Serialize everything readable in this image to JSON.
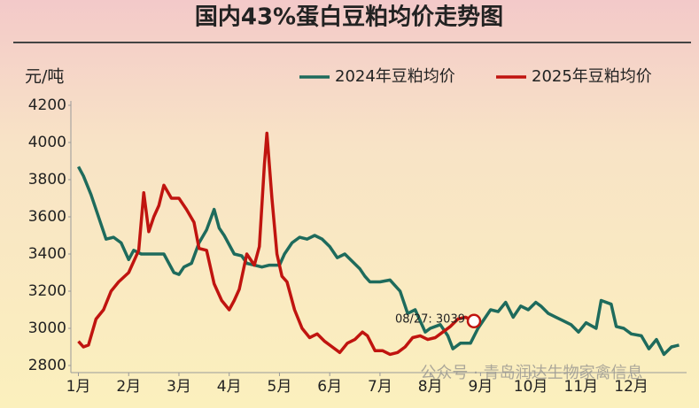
{
  "chart_data": {
    "type": "line",
    "title": "国内43%蛋白豆粕均价走势图",
    "y_label": "元/吨",
    "annotation": "08/27: 3039",
    "watermark": "公众号 · 青岛润达生物家禽信息",
    "legend": "top-right",
    "xlim": [
      0.85,
      13.1
    ],
    "xticks": [
      {
        "value": 1,
        "label": "1月"
      },
      {
        "value": 2,
        "label": "2月"
      },
      {
        "value": 3,
        "label": "3月"
      },
      {
        "value": 4,
        "label": "4月"
      },
      {
        "value": 5,
        "label": "5月"
      },
      {
        "value": 6,
        "label": "6月"
      },
      {
        "value": 7,
        "label": "7月"
      },
      {
        "value": 8,
        "label": "8月"
      },
      {
        "value": 9,
        "label": "9月"
      },
      {
        "value": 10,
        "label": "10月"
      },
      {
        "value": 11,
        "label": "11月"
      },
      {
        "value": 12,
        "label": "12月"
      }
    ],
    "ylim": [
      2800,
      4200
    ],
    "yticks": [
      2800,
      3000,
      3200,
      3400,
      3600,
      3800,
      4000,
      4200
    ],
    "series": [
      {
        "name": "2024年豆粕均价",
        "color": "#1e6b5c",
        "x": [
          1.0,
          1.1,
          1.25,
          1.4,
          1.55,
          1.7,
          1.85,
          2.0,
          2.1,
          2.25,
          2.5,
          2.7,
          2.8,
          2.9,
          3.0,
          3.1,
          3.25,
          3.4,
          3.55,
          3.7,
          3.8,
          3.9,
          4.0,
          4.1,
          4.25,
          4.35,
          4.5,
          4.65,
          4.8,
          5.0,
          5.1,
          5.25,
          5.4,
          5.55,
          5.7,
          5.85,
          6.0,
          6.15,
          6.3,
          6.45,
          6.6,
          6.7,
          6.8,
          6.9,
          7.0,
          7.2,
          7.4,
          7.55,
          7.7,
          7.8,
          7.9,
          8.0,
          8.2,
          8.35,
          8.45,
          8.6,
          8.8,
          8.95,
          9.1,
          9.2,
          9.35,
          9.5,
          9.65,
          9.8,
          9.95,
          10.1,
          10.2,
          10.35,
          10.5,
          10.65,
          10.8,
          10.95,
          11.1,
          11.3,
          11.4,
          11.6,
          11.7,
          11.85,
          12.0,
          12.2,
          12.35,
          12.5,
          12.65,
          12.8,
          12.95
        ],
        "values": [
          3870,
          3820,
          3720,
          3600,
          3480,
          3490,
          3460,
          3370,
          3420,
          3400,
          3400,
          3400,
          3350,
          3300,
          3290,
          3330,
          3350,
          3460,
          3530,
          3640,
          3540,
          3500,
          3450,
          3400,
          3390,
          3350,
          3340,
          3330,
          3340,
          3340,
          3400,
          3460,
          3490,
          3480,
          3500,
          3480,
          3440,
          3380,
          3400,
          3360,
          3320,
          3280,
          3250,
          3250,
          3250,
          3260,
          3200,
          3080,
          3100,
          3040,
          2980,
          3000,
          3020,
          2960,
          2890,
          2920,
          2920,
          3000,
          3060,
          3100,
          3090,
          3140,
          3060,
          3120,
          3100,
          3140,
          3120,
          3080,
          3060,
          3040,
          3020,
          2980,
          3030,
          3000,
          3150,
          3130,
          3010,
          3000,
          2970,
          2960,
          2890,
          2940,
          2860,
          2900,
          2910
        ]
      },
      {
        "name": "2025年豆粕均价",
        "color": "#c0140f",
        "x": [
          1.0,
          1.1,
          1.2,
          1.35,
          1.5,
          1.65,
          1.8,
          2.0,
          2.2,
          2.3,
          2.4,
          2.5,
          2.6,
          2.7,
          2.85,
          3.0,
          3.15,
          3.3,
          3.4,
          3.55,
          3.7,
          3.85,
          4.0,
          4.1,
          4.2,
          4.35,
          4.5,
          4.6,
          4.7,
          4.75,
          4.85,
          4.95,
          5.05,
          5.15,
          5.3,
          5.45,
          5.6,
          5.75,
          5.9,
          6.05,
          6.2,
          6.35,
          6.5,
          6.65,
          6.75,
          6.9,
          7.05,
          7.2,
          7.35,
          7.5,
          7.65,
          7.8,
          7.95,
          8.1,
          8.25,
          8.4,
          8.55,
          8.7,
          8.87
        ],
        "values": [
          2930,
          2900,
          2910,
          3050,
          3100,
          3200,
          3250,
          3300,
          3420,
          3730,
          3520,
          3600,
          3660,
          3770,
          3700,
          3700,
          3640,
          3570,
          3430,
          3420,
          3240,
          3150,
          3100,
          3150,
          3210,
          3400,
          3340,
          3440,
          3880,
          4050,
          3700,
          3400,
          3280,
          3250,
          3100,
          3000,
          2950,
          2970,
          2930,
          2900,
          2870,
          2920,
          2940,
          2980,
          2960,
          2880,
          2880,
          2860,
          2870,
          2900,
          2950,
          2960,
          2940,
          2950,
          2980,
          3010,
          3050,
          3060,
          3039
        ]
      }
    ]
  }
}
